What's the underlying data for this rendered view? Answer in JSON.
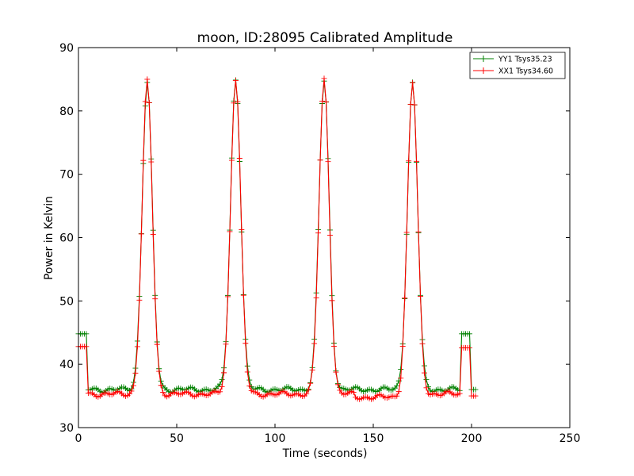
{
  "chart_data": {
    "type": "line",
    "title": "moon, ID:28095 Calibrated Amplitude",
    "xlabel": "Time (seconds)",
    "ylabel": "Power in Kelvin",
    "xlim": [
      0,
      250
    ],
    "ylim": [
      30,
      90
    ],
    "x_ticks": [
      "0",
      "50",
      "100",
      "150",
      "200",
      "250"
    ],
    "y_ticks": [
      "30",
      "40",
      "50",
      "60",
      "70",
      "80",
      "90"
    ],
    "grid": false,
    "legend_position": "top-right",
    "marker": "+",
    "sample_step": 1,
    "x_range": [
      0,
      202
    ],
    "peaks": [
      {
        "time": 35,
        "value_yy": 84.4,
        "value_xx": 84.6
      },
      {
        "time": 80,
        "value_yy": 85.0,
        "value_xx": 85.2
      },
      {
        "time": 125,
        "value_yy": 84.7,
        "value_xx": 84.9
      },
      {
        "time": 170,
        "value_yy": 84.3,
        "value_xx": 84.5
      }
    ],
    "series": [
      {
        "name": "YY1 Tsys35.23",
        "color": "#008000",
        "start_level": 44.8,
        "baseline": 36.0,
        "end_plateau_value": 44.8,
        "end_value": 36.0
      },
      {
        "name": "XX1 Tsys34.60",
        "color": "#ff0000",
        "start_level": 42.8,
        "baseline": 35.3,
        "end_plateau_value": 42.6,
        "end_value": 35.0
      }
    ]
  }
}
